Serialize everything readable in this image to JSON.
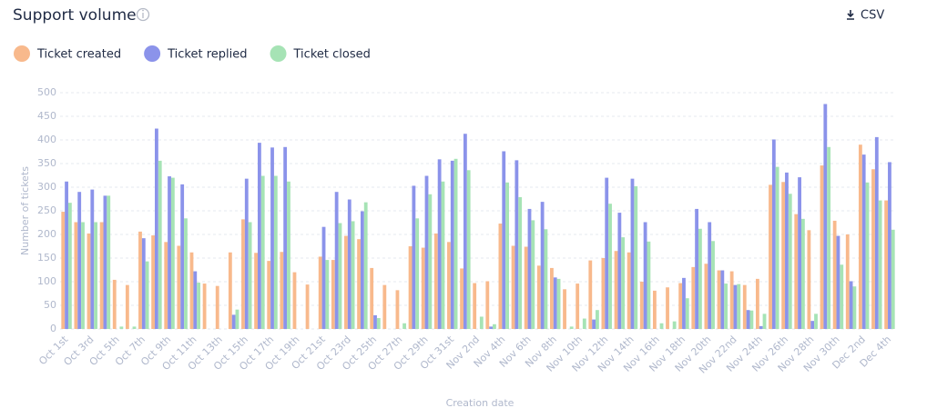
{
  "header": {
    "title": "Support volume",
    "button": "CSV"
  },
  "chart_data": {
    "type": "bar",
    "xlabel": "Creation date",
    "ylabel": "Number of tickets",
    "categories": [
      "Oct 1st",
      null,
      "Oct 3rd",
      null,
      "Oct 5th",
      null,
      "Oct 7th",
      null,
      "Oct 9th",
      null,
      "Oct 11th",
      null,
      "Oct 13th",
      null,
      "Oct 15th",
      null,
      "Oct 17th",
      null,
      "Oct 19th",
      null,
      "Oct 21st",
      null,
      "Oct 23rd",
      null,
      "Oct 25th",
      null,
      "Oct 27th",
      null,
      "Oct 29th",
      null,
      "Oct 31st",
      null,
      "Nov 2nd",
      null,
      "Nov 4th",
      null,
      "Nov 6th",
      null,
      "Nov 8th",
      null,
      "Nov 10th",
      null,
      "Nov 12th",
      null,
      "Nov 14th",
      null,
      "Nov 16th",
      null,
      "Nov 18th",
      null,
      "Nov 20th",
      null,
      "Nov 22nd",
      null,
      "Nov 24th",
      null,
      "Nov 26th",
      null,
      "Nov 28th",
      null,
      "Nov 30th",
      null,
      "Dec 2nd",
      null,
      "Dec 4th"
    ],
    "series": [
      {
        "name": "Ticket created",
        "color": "#f8b98c",
        "values": [
          248,
          226,
          202,
          226,
          104,
          93,
          206,
          198,
          184,
          176,
          162,
          96,
          91,
          162,
          232,
          161,
          144,
          163,
          120,
          94,
          153,
          146,
          197,
          190,
          129,
          93,
          82,
          175,
          172,
          202,
          184,
          128,
          97,
          101,
          223,
          176,
          174,
          134,
          129,
          84,
          96,
          145,
          150,
          165,
          162,
          100,
          81,
          88,
          97,
          131,
          138,
          124,
          122,
          93,
          106,
          305,
          311,
          243,
          209,
          346,
          229,
          200,
          390,
          338,
          272
        ]
      },
      {
        "name": "Ticket replied",
        "color": "#8b93ea",
        "values": [
          312,
          290,
          295,
          282,
          0,
          0,
          192,
          424,
          323,
          306,
          122,
          0,
          0,
          30,
          318,
          394,
          384,
          385,
          0,
          0,
          216,
          290,
          274,
          249,
          29,
          0,
          0,
          303,
          324,
          359,
          356,
          413,
          0,
          5,
          376,
          357,
          254,
          269,
          109,
          0,
          0,
          20,
          320,
          246,
          318,
          226,
          0,
          0,
          108,
          254,
          226,
          124,
          93,
          40,
          6,
          401,
          331,
          321,
          17,
          476,
          197,
          101,
          369,
          406,
          353
        ]
      },
      {
        "name": "Ticket closed",
        "color": "#a6e3b5",
        "values": [
          267,
          226,
          226,
          282,
          5,
          5,
          143,
          356,
          320,
          234,
          98,
          0,
          0,
          41,
          226,
          324,
          324,
          312,
          0,
          0,
          146,
          224,
          228,
          268,
          23,
          0,
          12,
          234,
          285,
          312,
          360,
          336,
          26,
          10,
          310,
          279,
          230,
          211,
          106,
          5,
          22,
          40,
          265,
          194,
          302,
          185,
          12,
          16,
          65,
          212,
          186,
          96,
          95,
          39,
          32,
          343,
          286,
          233,
          32,
          385,
          136,
          90,
          310,
          272,
          210
        ]
      }
    ],
    "ylim": [
      0,
      500
    ],
    "yticks": [
      0,
      50,
      100,
      150,
      200,
      250,
      300,
      350,
      400,
      450,
      500
    ],
    "grid": true,
    "legend": "top-left"
  }
}
